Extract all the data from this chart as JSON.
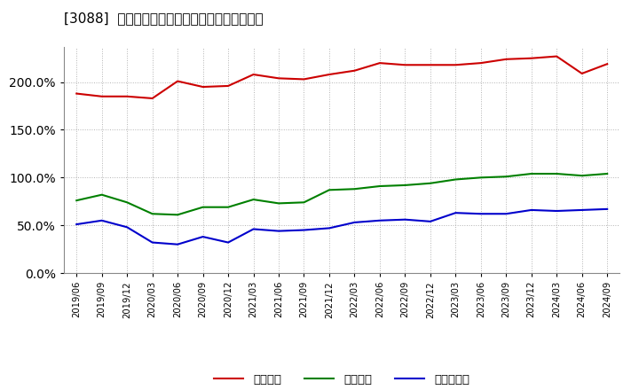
{
  "title_bracket": "[3088]",
  "title_main": "流動比率、当座比率、現預金比率の推移",
  "x_labels": [
    "2019/06",
    "2019/09",
    "2019/12",
    "2020/03",
    "2020/06",
    "2020/09",
    "2020/12",
    "2021/03",
    "2021/06",
    "2021/09",
    "2021/12",
    "2022/03",
    "2022/06",
    "2022/09",
    "2022/12",
    "2023/03",
    "2023/06",
    "2023/09",
    "2023/12",
    "2024/03",
    "2024/06",
    "2024/09"
  ],
  "current_ratio": [
    188,
    185,
    185,
    183,
    201,
    195,
    196,
    208,
    204,
    203,
    208,
    212,
    220,
    218,
    218,
    218,
    220,
    224,
    225,
    227,
    209,
    219
  ],
  "quick_ratio": [
    76,
    82,
    74,
    62,
    61,
    69,
    69,
    77,
    73,
    74,
    87,
    88,
    91,
    92,
    94,
    98,
    100,
    101,
    104,
    104,
    102,
    104
  ],
  "cash_ratio": [
    51,
    55,
    48,
    32,
    30,
    38,
    32,
    46,
    44,
    45,
    47,
    53,
    55,
    56,
    54,
    63,
    62,
    62,
    66,
    65,
    66,
    67
  ],
  "line_colors": [
    "#cc0000",
    "#008000",
    "#0000cc"
  ],
  "legend_labels": [
    "流動比率",
    "当座比率",
    "現預金比率"
  ],
  "ylim": [
    0,
    237
  ],
  "yticks": [
    0,
    50,
    100,
    150,
    200
  ],
  "background_color": "#ffffff",
  "plot_bg_color": "#ffffff",
  "grid_color": "#aaaaaa",
  "title_fontsize": 11
}
